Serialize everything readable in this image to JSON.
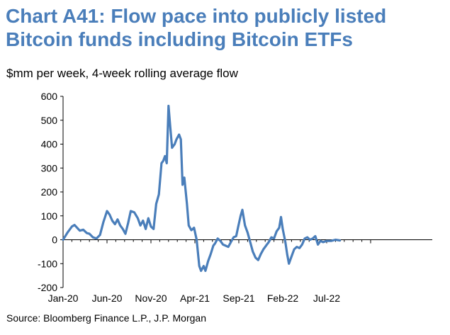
{
  "title_line1": "Chart A41: Flow pace into publicly listed",
  "title_line2": "Bitcoin funds including Bitcoin ETFs",
  "subtitle": "$mm per week, 4-week rolling average flow",
  "source": "Source: Bloomberg Finance L.P., J.P. Morgan",
  "colors": {
    "title": "#4a7eba",
    "line": "#4a7eba",
    "axis": "#000000"
  },
  "chart_data": {
    "type": "line",
    "title": "Chart A41: Flow pace into publicly listed Bitcoin funds including Bitcoin ETFs",
    "ylabel": "$mm per week, 4-week rolling average flow",
    "xlabel": "",
    "ylim": [
      -200,
      600
    ],
    "yticks": [
      -200,
      -100,
      0,
      100,
      200,
      300,
      400,
      500,
      600
    ],
    "xtick_labels": [
      "Jan-20",
      "Jun-20",
      "Nov-20",
      "Apr-21",
      "Sep-21",
      "Feb-22",
      "Jul-22"
    ],
    "xlim_months": [
      0,
      35
    ],
    "series": [
      {
        "name": "4-week rolling average flow",
        "points": [
          [
            0,
            0
          ],
          [
            0.5,
            30
          ],
          [
            1,
            55
          ],
          [
            1.3,
            62
          ],
          [
            1.6,
            50
          ],
          [
            1.9,
            38
          ],
          [
            2.3,
            42
          ],
          [
            2.7,
            28
          ],
          [
            3,
            25
          ],
          [
            3.4,
            10
          ],
          [
            3.8,
            5
          ],
          [
            4.2,
            20
          ],
          [
            4.6,
            75
          ],
          [
            5,
            120
          ],
          [
            5.3,
            105
          ],
          [
            5.6,
            80
          ],
          [
            5.9,
            65
          ],
          [
            6.2,
            85
          ],
          [
            6.5,
            60
          ],
          [
            6.8,
            45
          ],
          [
            7.1,
            25
          ],
          [
            7.4,
            70
          ],
          [
            7.7,
            120
          ],
          [
            8.1,
            115
          ],
          [
            8.5,
            90
          ],
          [
            8.8,
            60
          ],
          [
            9.1,
            80
          ],
          [
            9.4,
            45
          ],
          [
            9.7,
            90
          ],
          [
            10.0,
            55
          ],
          [
            10.3,
            45
          ],
          [
            10.6,
            150
          ],
          [
            10.9,
            190
          ],
          [
            11.2,
            320
          ],
          [
            11.4,
            330
          ],
          [
            11.6,
            350
          ],
          [
            11.8,
            320
          ],
          [
            12.0,
            560
          ],
          [
            12.2,
            470
          ],
          [
            12.4,
            385
          ],
          [
            12.7,
            400
          ],
          [
            12.9,
            420
          ],
          [
            13.2,
            440
          ],
          [
            13.4,
            420
          ],
          [
            13.6,
            230
          ],
          [
            13.8,
            260
          ],
          [
            14.1,
            150
          ],
          [
            14.3,
            60
          ],
          [
            14.6,
            40
          ],
          [
            14.9,
            50
          ],
          [
            15.2,
            0
          ],
          [
            15.5,
            -110
          ],
          [
            15.7,
            -130
          ],
          [
            16.0,
            -110
          ],
          [
            16.2,
            -130
          ],
          [
            16.5,
            -90
          ],
          [
            16.8,
            -60
          ],
          [
            17.1,
            -25
          ],
          [
            17.3,
            -15
          ],
          [
            17.6,
            5
          ],
          [
            17.9,
            -5
          ],
          [
            18.2,
            -20
          ],
          [
            18.5,
            -25
          ],
          [
            18.8,
            -30
          ],
          [
            19.1,
            -10
          ],
          [
            19.4,
            10
          ],
          [
            19.7,
            15
          ],
          [
            19.9,
            50
          ],
          [
            20.2,
            100
          ],
          [
            20.4,
            125
          ],
          [
            20.7,
            60
          ],
          [
            21.0,
            30
          ],
          [
            21.3,
            -10
          ],
          [
            21.6,
            -50
          ],
          [
            21.9,
            -75
          ],
          [
            22.2,
            -85
          ],
          [
            22.5,
            -60
          ],
          [
            22.8,
            -40
          ],
          [
            23.1,
            -25
          ],
          [
            23.4,
            -10
          ],
          [
            23.7,
            10
          ],
          [
            24.0,
            5
          ],
          [
            24.3,
            35
          ],
          [
            24.6,
            50
          ],
          [
            24.8,
            95
          ],
          [
            25.0,
            45
          ],
          [
            25.3,
            -10
          ],
          [
            25.5,
            -60
          ],
          [
            25.7,
            -100
          ],
          [
            26.0,
            -70
          ],
          [
            26.3,
            -40
          ],
          [
            26.6,
            -30
          ],
          [
            26.9,
            -35
          ],
          [
            27.2,
            -20
          ],
          [
            27.5,
            5
          ],
          [
            27.8,
            10
          ],
          [
            28.1,
            0
          ],
          [
            28.4,
            5
          ],
          [
            28.7,
            15
          ],
          [
            29.0,
            -20
          ],
          [
            29.3,
            -5
          ],
          [
            29.6,
            -10
          ],
          [
            30.0,
            -5
          ],
          [
            30.5,
            -5
          ],
          [
            31.0,
            0
          ],
          [
            31.5,
            -3
          ]
        ]
      }
    ]
  }
}
